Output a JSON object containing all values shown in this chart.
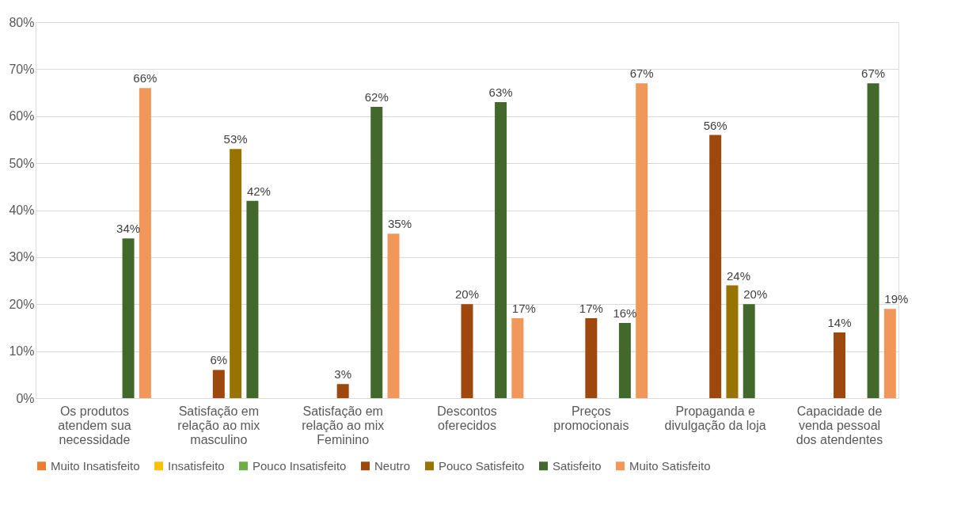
{
  "chart_data": {
    "type": "bar",
    "categories": [
      "Os produtos\natendem sua\nnecessidade",
      "Satisfação em\nrelação ao mix\nmasculino",
      "Satisfação em\nrelação ao  mix\nFeminino",
      "Descontos\noferecidos",
      "Preços\npromocionais",
      "Propaganda e\ndivulgação da loja",
      "Capacidade de\nvenda pessoal\ndos atendentes"
    ],
    "series": [
      {
        "name": "Muito Insatisfeito",
        "color": "#ed7d31",
        "values": [
          null,
          null,
          null,
          null,
          null,
          null,
          null
        ]
      },
      {
        "name": "Insatisfeito",
        "color": "#ffc000",
        "values": [
          null,
          null,
          null,
          null,
          null,
          null,
          null
        ]
      },
      {
        "name": "Pouco Insatisfeito",
        "color": "#70ad47",
        "values": [
          null,
          null,
          null,
          null,
          null,
          null,
          null
        ]
      },
      {
        "name": "Neutro",
        "color": "#9e480e",
        "values": [
          null,
          6,
          3,
          20,
          17,
          56,
          14
        ],
        "value_labels": [
          null,
          "6%",
          "3%",
          "20%",
          "17%",
          "56%",
          "14%"
        ]
      },
      {
        "name": "Pouco Satisfeito",
        "color": "#997300",
        "values": [
          null,
          53,
          null,
          null,
          null,
          24,
          null
        ],
        "value_labels": [
          null,
          "53%",
          null,
          null,
          null,
          "24%",
          null
        ]
      },
      {
        "name": "Satisfeito",
        "color": "#43682b",
        "values": [
          34,
          42,
          62,
          63,
          16,
          20,
          67
        ],
        "value_labels": [
          "34%",
          "42%",
          "62%",
          "63%",
          "16%",
          "20%",
          "67%"
        ]
      },
      {
        "name": "Muito Satisfeito",
        "color": "#f1975a",
        "values": [
          66,
          null,
          35,
          17,
          67,
          null,
          19
        ],
        "value_labels": [
          "66%",
          null,
          "35%",
          "17%",
          "67%",
          null,
          "19%"
        ]
      }
    ],
    "ylim": [
      0,
      80
    ],
    "yticks": [
      {
        "value": 0,
        "label": "0%"
      },
      {
        "value": 10,
        "label": "10%"
      },
      {
        "value": 20,
        "label": "20%"
      },
      {
        "value": 30,
        "label": "30%"
      },
      {
        "value": 40,
        "label": "40%"
      },
      {
        "value": 50,
        "label": "50%"
      },
      {
        "value": 60,
        "label": "60%"
      },
      {
        "value": 70,
        "label": "70%"
      },
      {
        "value": 80,
        "label": "80%"
      }
    ],
    "grid": "y",
    "legend": "bottom"
  }
}
